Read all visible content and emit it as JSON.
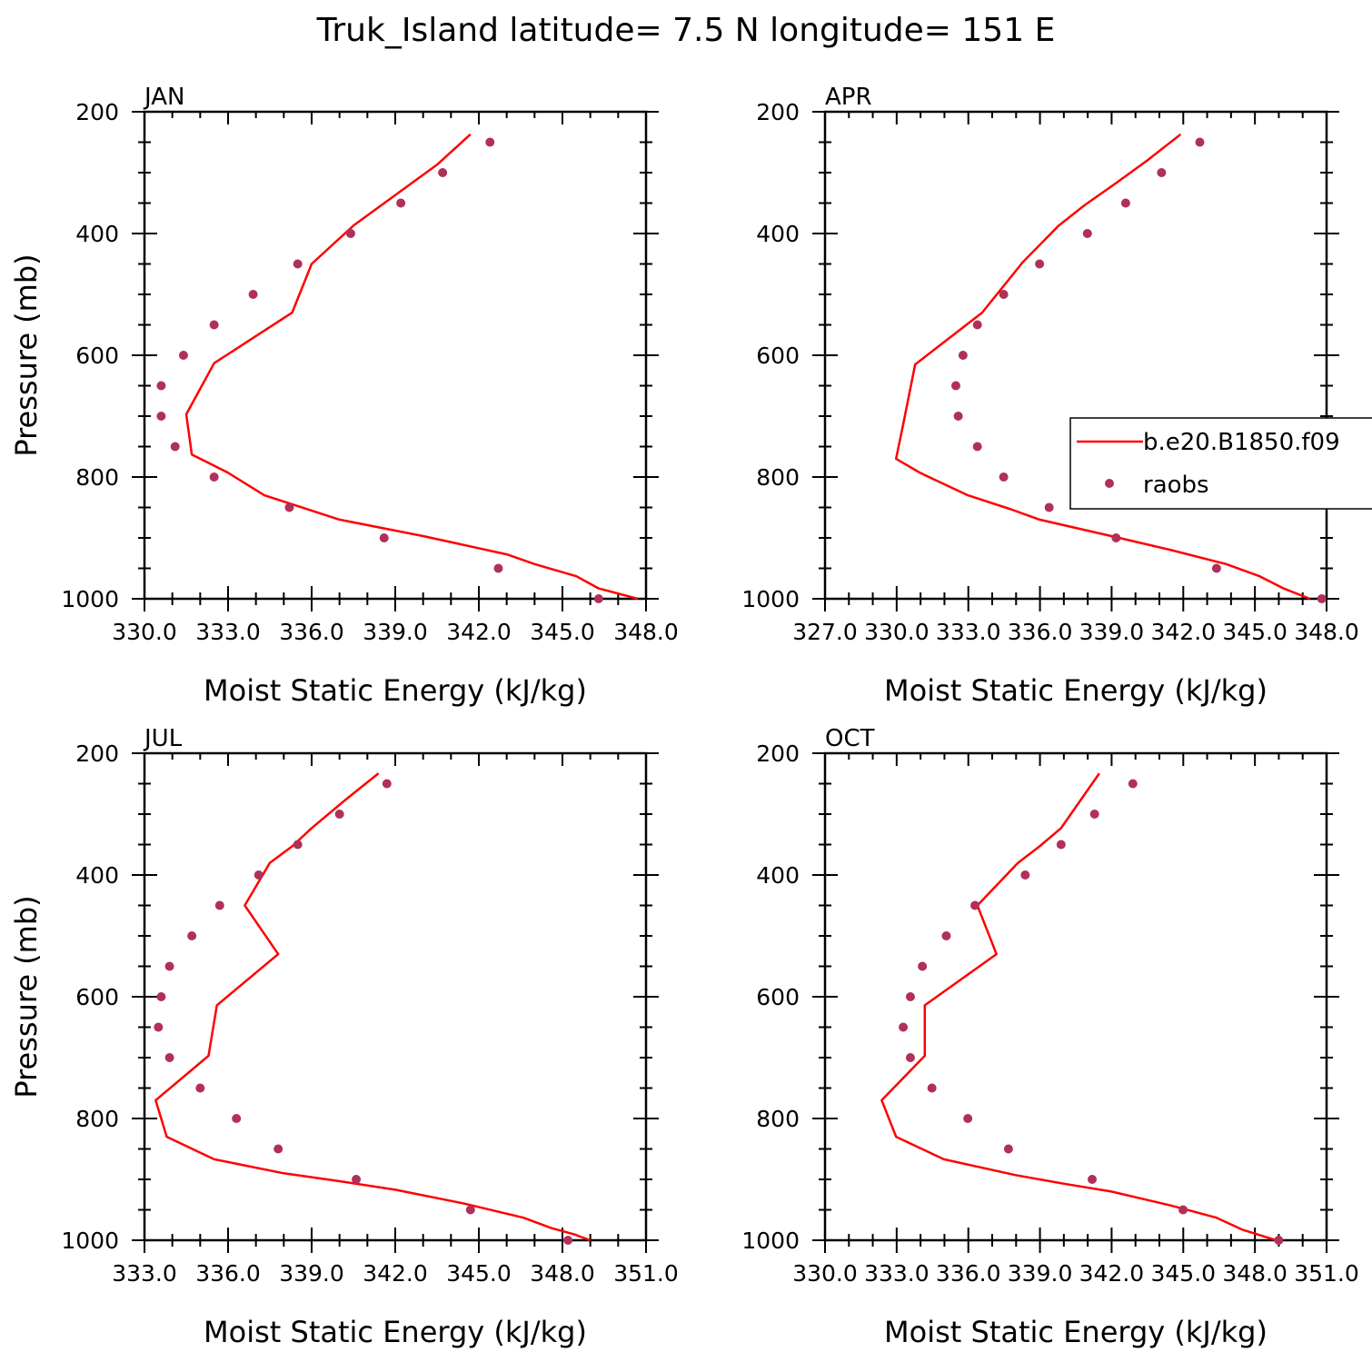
{
  "figure": {
    "title": "Truk_Island  latitude= 7.5 N longitude= 151 E",
    "legend": {
      "model_label": "b.e20.B1850.f09",
      "obs_label": "raobs",
      "placement": "right, inside APR panel (clipped at figure edge)"
    },
    "colors": {
      "model_line": "#ff0000",
      "obs_marker": "#b0305a",
      "axis": "#000000"
    }
  },
  "chart_data": [
    {
      "type": "line",
      "panel": "JAN",
      "xlabel": "Moist Static Energy (kJ/kg)",
      "ylabel": "Pressure (mb)",
      "xlim": [
        330,
        348
      ],
      "xticks": [
        "330.0",
        "333.0",
        "336.0",
        "339.0",
        "342.0",
        "345.0",
        "348.0"
      ],
      "ylim": [
        1000,
        200
      ],
      "yticks": [
        "200",
        "400",
        "600",
        "800",
        "1000"
      ],
      "series": [
        {
          "name": "b.e20.B1850.f09",
          "style": "line",
          "points": [
            [
              341.7,
              237
            ],
            [
              340.5,
              287
            ],
            [
              339.0,
              337
            ],
            [
              337.5,
              387
            ],
            [
              336.0,
              450
            ],
            [
              335.3,
              530
            ],
            [
              332.5,
              613
            ],
            [
              331.5,
              697
            ],
            [
              331.7,
              763
            ],
            [
              333.0,
              793
            ],
            [
              334.3,
              830
            ],
            [
              337.0,
              870
            ],
            [
              340.0,
              897
            ],
            [
              343.0,
              927
            ],
            [
              344.0,
              943
            ],
            [
              345.5,
              963
            ],
            [
              346.3,
              983
            ],
            [
              347.7,
              1000
            ]
          ]
        },
        {
          "name": "raobs",
          "style": "markers",
          "points": [
            [
              342.4,
              250
            ],
            [
              340.7,
              300
            ],
            [
              339.2,
              350
            ],
            [
              337.4,
              400
            ],
            [
              335.5,
              450
            ],
            [
              333.9,
              500
            ],
            [
              332.5,
              550
            ],
            [
              331.4,
              600
            ],
            [
              330.6,
              650
            ],
            [
              330.6,
              700
            ],
            [
              331.1,
              750
            ],
            [
              332.5,
              800
            ],
            [
              335.2,
              850
            ],
            [
              338.6,
              900
            ],
            [
              342.7,
              950
            ],
            [
              346.3,
              1000
            ]
          ]
        }
      ]
    },
    {
      "type": "line",
      "panel": "APR",
      "xlabel": "Moist Static Energy (kJ/kg)",
      "ylabel": "",
      "xlim": [
        327.03,
        348
      ],
      "xticks": [
        "327.0",
        "330.0",
        "333.0",
        "336.0",
        "339.0",
        "342.0",
        "345.0",
        "348.0"
      ],
      "ylim": [
        1000,
        200
      ],
      "yticks": [
        "200",
        "400",
        "600",
        "800",
        "1000"
      ],
      "series": [
        {
          "name": "b.e20.B1850.f09",
          "style": "line",
          "points": [
            [
              341.9,
              237
            ],
            [
              340.5,
              280
            ],
            [
              339.1,
              320
            ],
            [
              337.9,
              353
            ],
            [
              336.8,
              387
            ],
            [
              335.3,
              447
            ],
            [
              333.6,
              530
            ],
            [
              330.8,
              615
            ],
            [
              330.3,
              713
            ],
            [
              330.0,
              770
            ],
            [
              331.0,
              793
            ],
            [
              333.0,
              830
            ],
            [
              334.8,
              853
            ],
            [
              336.0,
              870
            ],
            [
              339.0,
              897
            ],
            [
              341.5,
              920
            ],
            [
              343.8,
              943
            ],
            [
              345.2,
              963
            ],
            [
              346.2,
              983
            ],
            [
              347.3,
              1000
            ]
          ]
        },
        {
          "name": "raobs",
          "style": "markers",
          "points": [
            [
              342.7,
              250
            ],
            [
              341.1,
              300
            ],
            [
              339.6,
              350
            ],
            [
              338.0,
              400
            ],
            [
              336.0,
              450
            ],
            [
              334.5,
              500
            ],
            [
              333.4,
              550
            ],
            [
              332.8,
              600
            ],
            [
              332.5,
              650
            ],
            [
              332.6,
              700
            ],
            [
              333.4,
              750
            ],
            [
              334.5,
              800
            ],
            [
              336.4,
              850
            ],
            [
              339.2,
              900
            ],
            [
              343.4,
              950
            ],
            [
              347.8,
              1000
            ]
          ]
        }
      ]
    },
    {
      "type": "line",
      "panel": "JUL",
      "xlabel": "Moist Static Energy (kJ/kg)",
      "ylabel": "Pressure (mb)",
      "xlim": [
        333,
        351
      ],
      "xticks": [
        "333.0",
        "336.0",
        "339.0",
        "342.0",
        "345.0",
        "348.0",
        "351.0"
      ],
      "ylim": [
        1000,
        200
      ],
      "yticks": [
        "200",
        "400",
        "600",
        "800",
        "1000"
      ],
      "series": [
        {
          "name": "b.e20.B1850.f09",
          "style": "line",
          "points": [
            [
              341.4,
              233
            ],
            [
              340.2,
              277
            ],
            [
              339.0,
              323
            ],
            [
              338.3,
              353
            ],
            [
              337.5,
              380
            ],
            [
              336.6,
              450
            ],
            [
              337.8,
              530
            ],
            [
              335.6,
              614
            ],
            [
              335.3,
              697
            ],
            [
              333.4,
              770
            ],
            [
              333.8,
              830
            ],
            [
              335.5,
              867
            ],
            [
              338.0,
              890
            ],
            [
              340.0,
              903
            ],
            [
              342.0,
              917
            ],
            [
              344.5,
              940
            ],
            [
              346.6,
              963
            ],
            [
              347.6,
              980
            ],
            [
              348.4,
              990
            ],
            [
              349.0,
              1000
            ]
          ]
        },
        {
          "name": "raobs",
          "style": "markers",
          "points": [
            [
              341.7,
              250
            ],
            [
              340.0,
              300
            ],
            [
              338.5,
              350
            ],
            [
              337.1,
              400
            ],
            [
              335.7,
              450
            ],
            [
              334.7,
              500
            ],
            [
              333.9,
              550
            ],
            [
              333.6,
              600
            ],
            [
              333.5,
              650
            ],
            [
              333.9,
              700
            ],
            [
              335.0,
              750
            ],
            [
              336.3,
              800
            ],
            [
              337.8,
              850
            ],
            [
              340.6,
              900
            ],
            [
              344.7,
              950
            ],
            [
              348.2,
              1000
            ]
          ]
        }
      ]
    },
    {
      "type": "line",
      "panel": "OCT",
      "xlabel": "Moist Static Energy (kJ/kg)",
      "ylabel": "",
      "xlim": [
        330.03,
        351
      ],
      "xticks": [
        "330.0",
        "333.0",
        "336.0",
        "339.0",
        "342.0",
        "345.0",
        "348.0",
        "351.0"
      ],
      "ylim": [
        1000,
        200
      ],
      "yticks": [
        "200",
        "400",
        "600",
        "800",
        "1000"
      ],
      "series": [
        {
          "name": "b.e20.B1850.f09",
          "style": "line",
          "points": [
            [
              341.5,
              233
            ],
            [
              339.9,
              323
            ],
            [
              339.0,
              353
            ],
            [
              338.1,
              380
            ],
            [
              336.4,
              450
            ],
            [
              337.2,
              530
            ],
            [
              334.2,
              614
            ],
            [
              334.2,
              697
            ],
            [
              332.4,
              770
            ],
            [
              333.0,
              830
            ],
            [
              335.0,
              867
            ],
            [
              338.0,
              893
            ],
            [
              340.0,
              907
            ],
            [
              342.0,
              920
            ],
            [
              344.5,
              943
            ],
            [
              346.4,
              963
            ],
            [
              347.5,
              983
            ],
            [
              348.9,
              1000
            ]
          ]
        },
        {
          "name": "raobs",
          "style": "markers",
          "points": [
            [
              342.9,
              250
            ],
            [
              341.3,
              300
            ],
            [
              339.9,
              350
            ],
            [
              338.4,
              400
            ],
            [
              336.3,
              450
            ],
            [
              335.1,
              500
            ],
            [
              334.1,
              550
            ],
            [
              333.6,
              600
            ],
            [
              333.3,
              650
            ],
            [
              333.6,
              700
            ],
            [
              334.5,
              750
            ],
            [
              336.0,
              800
            ],
            [
              337.7,
              850
            ],
            [
              341.2,
              900
            ],
            [
              345.0,
              950
            ],
            [
              349.0,
              1000
            ]
          ]
        }
      ]
    }
  ]
}
